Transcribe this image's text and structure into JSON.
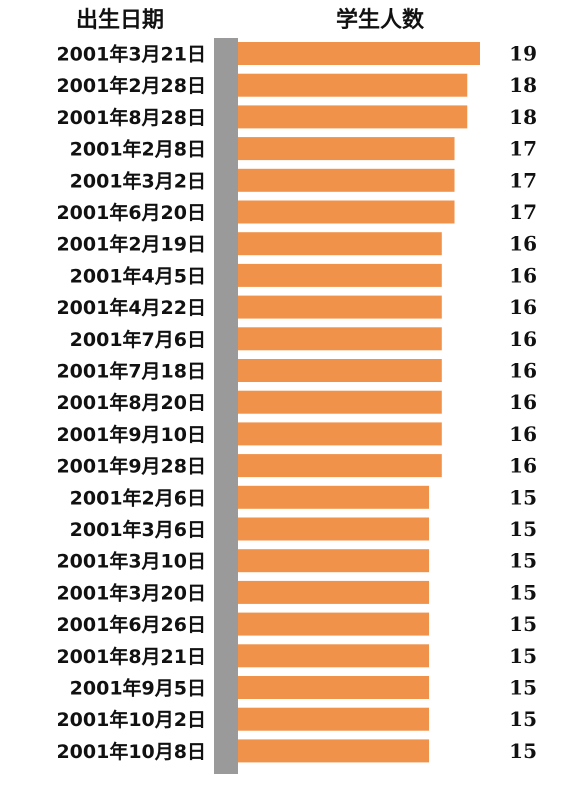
{
  "chart_data": {
    "type": "bar",
    "orientation": "horizontal",
    "column_headers": {
      "category": "出生日期",
      "value": "学生人数"
    },
    "categories": [
      "2001年3月21日",
      "2001年2月28日",
      "2001年8月28日",
      "2001年2月8日",
      "2001年3月2日",
      "2001年6月20日",
      "2001年2月19日",
      "2001年4月5日",
      "2001年4月22日",
      "2001年7月6日",
      "2001年7月18日",
      "2001年8月20日",
      "2001年9月10日",
      "2001年9月28日",
      "2001年2月6日",
      "2001年3月6日",
      "2001年3月10日",
      "2001年3月20日",
      "2001年6月26日",
      "2001年8月21日",
      "2001年9月5日",
      "2001年10月2日",
      "2001年10月8日"
    ],
    "values": [
      19,
      18,
      18,
      17,
      17,
      17,
      16,
      16,
      16,
      16,
      16,
      16,
      16,
      16,
      15,
      15,
      15,
      15,
      15,
      15,
      15,
      15,
      15
    ],
    "value_labels": [
      "19",
      "18",
      "18",
      "17",
      "17",
      "17",
      "16",
      "16",
      "16",
      "16",
      "16",
      "16",
      "16",
      "16",
      "15",
      "15",
      "15",
      "15",
      "15",
      "15",
      "15",
      "15",
      "15"
    ],
    "axis_range": [
      0,
      19
    ],
    "grid": false,
    "bar_color": "#f0924a",
    "axis_bar_color": "#9a9a9a"
  }
}
